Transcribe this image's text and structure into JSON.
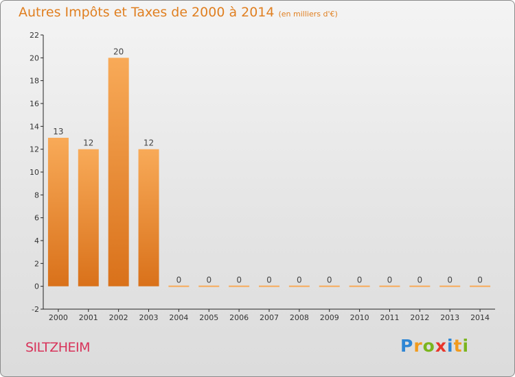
{
  "title": "Autres Impôts et Taxes de 2000 à 2014",
  "subtitle": "(en milliers d'€)",
  "commune": "SILTZHEIM",
  "logo": {
    "letters": [
      "P",
      "r",
      "o",
      "x",
      "i",
      "t",
      "i"
    ],
    "colors": [
      "#2e86d4",
      "#f29b1d",
      "#7ab51d",
      "#e8352a",
      "#2e86d4",
      "#f29b1d",
      "#7ab51d"
    ]
  },
  "colors": {
    "bar_light": "#f8aa58",
    "bar_dark": "#d9711a",
    "title": "#e07f20",
    "commune": "#d8335a"
  },
  "chart_data": {
    "type": "bar",
    "title": "Autres Impôts et Taxes de 2000 à 2014",
    "subtitle": "(en milliers d'€)",
    "categories": [
      "2000",
      "2001",
      "2002",
      "2003",
      "2004",
      "2005",
      "2006",
      "2007",
      "2008",
      "2009",
      "2010",
      "2011",
      "2012",
      "2013",
      "2014"
    ],
    "values": [
      13,
      12,
      20,
      12,
      0,
      0,
      0,
      0,
      0,
      0,
      0,
      0,
      0,
      0,
      0
    ],
    "ylim": [
      -2,
      22
    ],
    "yticks": [
      -2,
      0,
      2,
      4,
      6,
      8,
      10,
      12,
      14,
      16,
      18,
      20,
      22
    ],
    "grid": false,
    "legend": "none"
  }
}
